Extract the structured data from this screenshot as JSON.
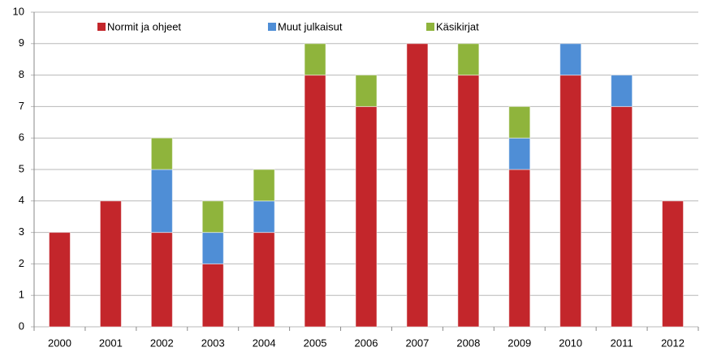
{
  "chart_data": {
    "type": "stacked_bar",
    "categories": [
      "2000",
      "2001",
      "2002",
      "2003",
      "2004",
      "2005",
      "2006",
      "2007",
      "2008",
      "2009",
      "2010",
      "2011",
      "2012"
    ],
    "series": [
      {
        "name": "Normit ja ohjeet",
        "color": "#c3262b",
        "values": [
          3,
          4,
          3,
          2,
          3,
          8,
          7,
          9,
          8,
          5,
          8,
          7,
          4
        ]
      },
      {
        "name": "Muut julkaisut",
        "color": "#4f8ed6",
        "values": [
          0,
          0,
          2,
          1,
          1,
          0,
          0,
          0,
          0,
          1,
          1,
          1,
          0
        ]
      },
      {
        "name": "Käsikirjat",
        "color": "#8fb43c",
        "values": [
          0,
          0,
          1,
          1,
          1,
          1,
          1,
          0,
          1,
          1,
          0,
          0,
          0
        ]
      }
    ],
    "ylim": [
      0,
      10
    ],
    "yticks": [
      0,
      1,
      2,
      3,
      4,
      5,
      6,
      7,
      8,
      9,
      10
    ],
    "grid": true,
    "legend": "top"
  }
}
